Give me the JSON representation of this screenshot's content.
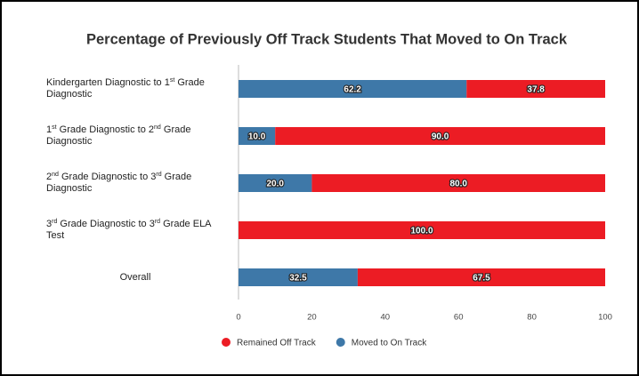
{
  "chart_data": {
    "type": "bar",
    "orientation": "horizontal",
    "stacked": true,
    "title": "Percentage of Previously Off Track Students That Moved to On Track",
    "categories": [
      "Kindergarten Diagnostic to 1st Grade Diagnostic",
      "1st Grade Diagnostic to 2nd Grade Diagnostic",
      "2nd Grade Diagnostic to 3rd Grade Diagnostic",
      "3rd Grade Diagnostic to 3rd Grade ELA Test",
      "Overall"
    ],
    "series": [
      {
        "name": "Moved to On Track",
        "color": "#3e78a8",
        "values": [
          62.2,
          10,
          20,
          0,
          32.5
        ],
        "value_labels": [
          "62.2",
          "10.0",
          "20.0",
          "0.0",
          "32.5"
        ]
      },
      {
        "name": "Remained Off Track",
        "color": "#ec1c24",
        "values": [
          37.8,
          90,
          80,
          100,
          67.5
        ],
        "value_labels": [
          "37.8",
          "90.0",
          "80.0",
          "100.0",
          "67.5"
        ]
      }
    ],
    "xlim": [
      0,
      100
    ],
    "xticks": [
      0,
      20,
      40,
      60,
      80,
      100
    ],
    "legend": "bottom"
  }
}
